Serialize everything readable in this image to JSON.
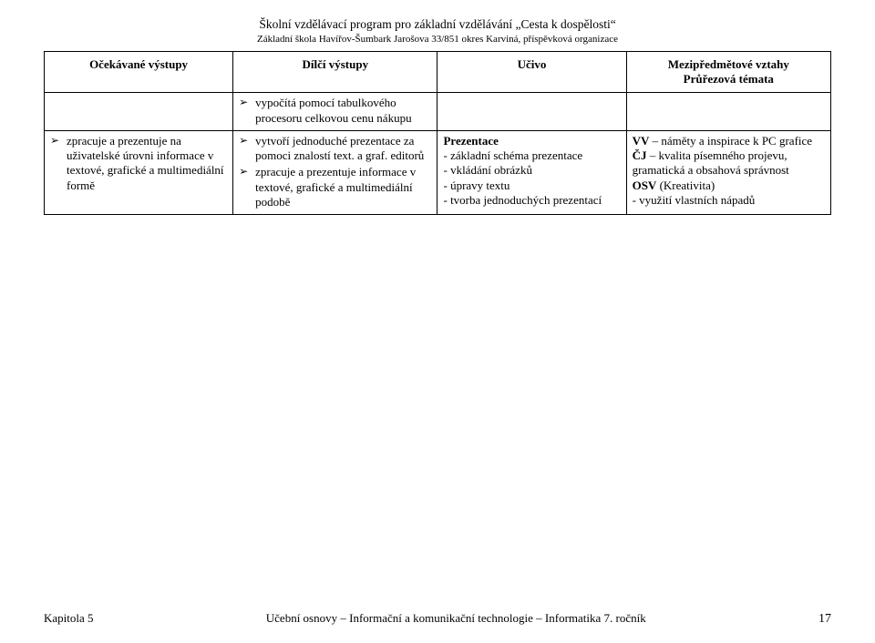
{
  "header": {
    "title": "Školní vzdělávací program pro základní vzdělávání „Cesta k dospělosti“",
    "subtitle": "Základní škola Havířov-Šumbark Jarošova 33/851 okres Karviná, příspěvková organizace"
  },
  "table": {
    "col_headers": {
      "c1": "Očekávané výstupy",
      "c2": "Dílčí výstupy",
      "c3": "Učivo",
      "c4_l1": "Mezipředmětové vztahy",
      "c4_l2": "Průřezová témata"
    },
    "row1": {
      "c2_item1": "vypočítá pomocí tabulkového procesoru celkovou cenu nákupu"
    },
    "row2": {
      "c1_item1": "zpracuje a prezentuje na uživatelské úrovni informace v textové, grafické a multimediální formě",
      "c2_item1": "vytvoří jednoduché prezentace za pomoci znalostí text. a graf. editorů",
      "c2_item2": "zpracuje a prezentuje informace v textové, grafické a multimediální podobě",
      "c3_title": "Prezentace",
      "c3_l1": "- základní schéma prezentace",
      "c3_l2": "- vkládání obrázků",
      "c3_l3": "- úpravy textu",
      "c3_l4": "- tvorba jednoduchých prezentací",
      "c4_vv_b": "VV",
      "c4_vv_t": " – náměty a inspirace k PC grafice",
      "c4_cj_b": "ČJ",
      "c4_cj_t": " – kvalita písemného projevu, gramatická a obsahová správnost",
      "c4_osv_b": "OSV",
      "c4_osv_t": " (Kreativita)",
      "c4_l4": "- využití vlastních nápadů"
    }
  },
  "footer": {
    "chapter": "Kapitola 5",
    "middle": "Učební osnovy – Informační a komunikační technologie – Informatika 7. ročník",
    "page": "17"
  }
}
